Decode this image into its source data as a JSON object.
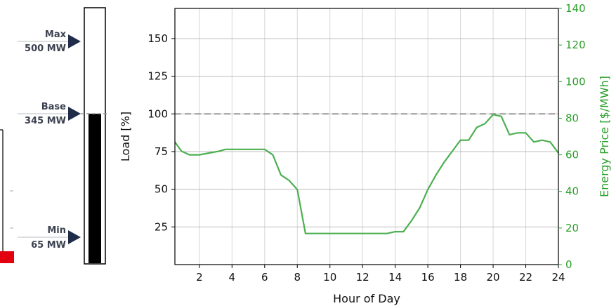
{
  "colors": {
    "price_line": "#4caf50",
    "right_axis": "#2ca02c",
    "gauge_fill": "#000000",
    "gauge_arrow": "#1f2d4a",
    "gauge_label": "#3c4250",
    "reference_line": "#999999",
    "partial_bar": "#e3000f"
  },
  "gauge": {
    "markers": [
      {
        "name": "Max",
        "value": "500 MW"
      },
      {
        "name": "Base",
        "value": "345 MW"
      },
      {
        "name": "Min",
        "value": "65 MW"
      }
    ],
    "level_percent": 100
  },
  "chart_data": {
    "type": "line",
    "xlabel": "Hour of Day",
    "ylabel": "Load [%]",
    "y2label": "Energy Price [$/MWh]",
    "xlim": [
      0.5,
      24
    ],
    "ylim": [
      0,
      170
    ],
    "y2lim": [
      0,
      140
    ],
    "x_ticks": [
      2,
      4,
      6,
      8,
      10,
      12,
      14,
      16,
      18,
      20,
      22,
      24
    ],
    "y_ticks": [
      25,
      50,
      75,
      100,
      125,
      150
    ],
    "y2_ticks": [
      0,
      20,
      40,
      60,
      80,
      100,
      120,
      140
    ],
    "grid": true,
    "reference_line": {
      "axis": "y",
      "value": 100,
      "style": "dashed"
    },
    "series": [
      {
        "axis": "y2",
        "x": [
          0.5,
          0.9,
          1.4,
          2.0,
          2.6,
          3.2,
          3.6,
          4.2,
          5.0,
          5.5,
          6.0,
          6.5,
          7.0,
          7.5,
          8.0,
          8.5,
          9.0,
          10.0,
          11.0,
          12.0,
          13.0,
          13.5,
          14.0,
          14.5,
          15.0,
          15.5,
          16.0,
          16.5,
          17.0,
          17.5,
          18.0,
          18.5,
          19.0,
          19.5,
          20.0,
          20.5,
          21.0,
          21.5,
          22.0,
          22.5,
          23.0,
          23.5,
          24.0
        ],
        "values": [
          67,
          62,
          60,
          60,
          61,
          62,
          63,
          63,
          63,
          63,
          63,
          60,
          49,
          46,
          41,
          17,
          17,
          17,
          17,
          17,
          17,
          17,
          18,
          18,
          24,
          31,
          41,
          49,
          56,
          62,
          68,
          68,
          75,
          77,
          82,
          81,
          71,
          72,
          72,
          67,
          68,
          67,
          61
        ]
      }
    ]
  }
}
